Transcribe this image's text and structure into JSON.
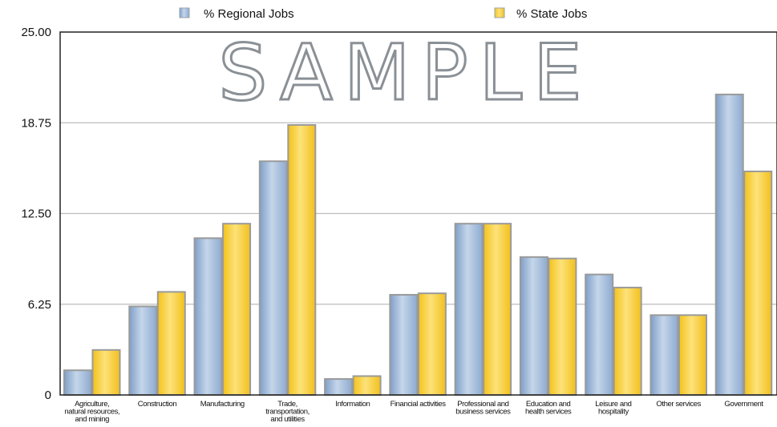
{
  "chart_data": {
    "type": "bar",
    "watermark": "SAMPLE",
    "legend_position": "top",
    "y_ticks": [
      "0",
      "6.25",
      "12.50",
      "18.75",
      "25.00"
    ],
    "ylim": [
      0,
      25
    ],
    "grid": true,
    "categories": [
      [
        "Agriculture,",
        "natural resources,",
        "and mining"
      ],
      [
        "Construction"
      ],
      [
        "Manufacturing"
      ],
      [
        "Trade,",
        "transportation,",
        "and utilities"
      ],
      [
        "Information"
      ],
      [
        "Financial activities"
      ],
      [
        "Professional and",
        "business services"
      ],
      [
        "Education and",
        "health services"
      ],
      [
        "Leisure and",
        "hospitality"
      ],
      [
        "Other services"
      ],
      [
        "Government"
      ]
    ],
    "series": [
      {
        "name": "% Regional Jobs",
        "color": "#9fbbdc",
        "values": [
          1.7,
          6.1,
          10.8,
          16.1,
          1.1,
          6.9,
          11.8,
          9.5,
          8.3,
          5.5,
          20.7
        ]
      },
      {
        "name": "% State Jobs",
        "color": "#f7cf3a",
        "values": [
          3.1,
          7.1,
          11.8,
          18.6,
          1.3,
          7.0,
          11.8,
          9.4,
          7.4,
          5.5,
          15.4
        ]
      }
    ]
  }
}
